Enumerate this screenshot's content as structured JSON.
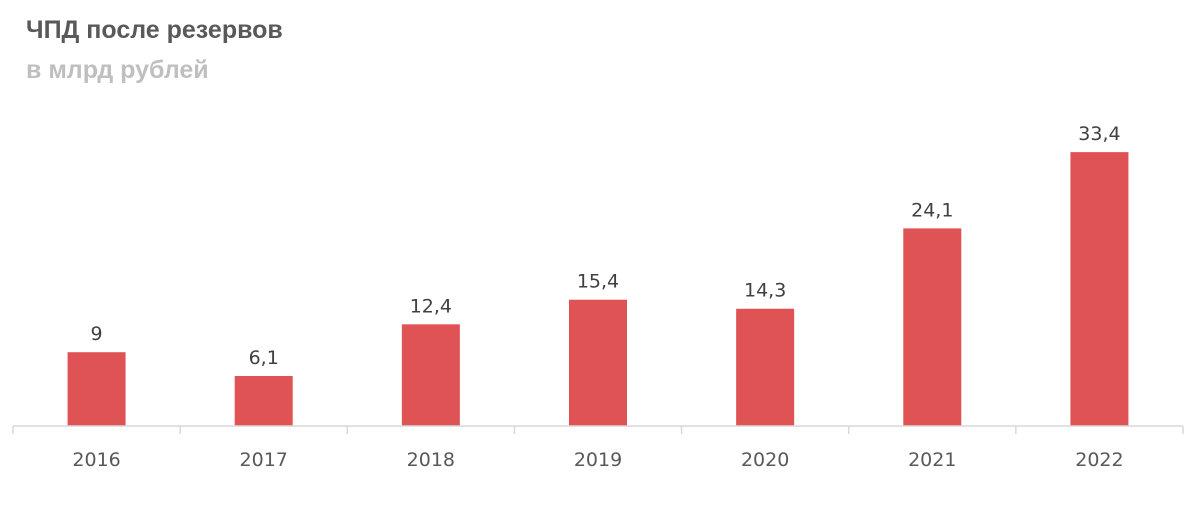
{
  "chart_data": {
    "type": "bar",
    "title": "ЧПД после резервов",
    "subtitle": "в млрд рублей",
    "categories": [
      "2016",
      "2017",
      "2018",
      "2019",
      "2020",
      "2021",
      "2022"
    ],
    "values": [
      9,
      6.1,
      12.4,
      15.4,
      14.3,
      24.1,
      33.4
    ],
    "value_labels": [
      "9",
      "6,1",
      "12,4",
      "15,4",
      "14,3",
      "24,1",
      "33,4"
    ],
    "bar_color": "#e05355",
    "axis_color": "#d9d9d9",
    "grid": false,
    "legend": "none"
  }
}
